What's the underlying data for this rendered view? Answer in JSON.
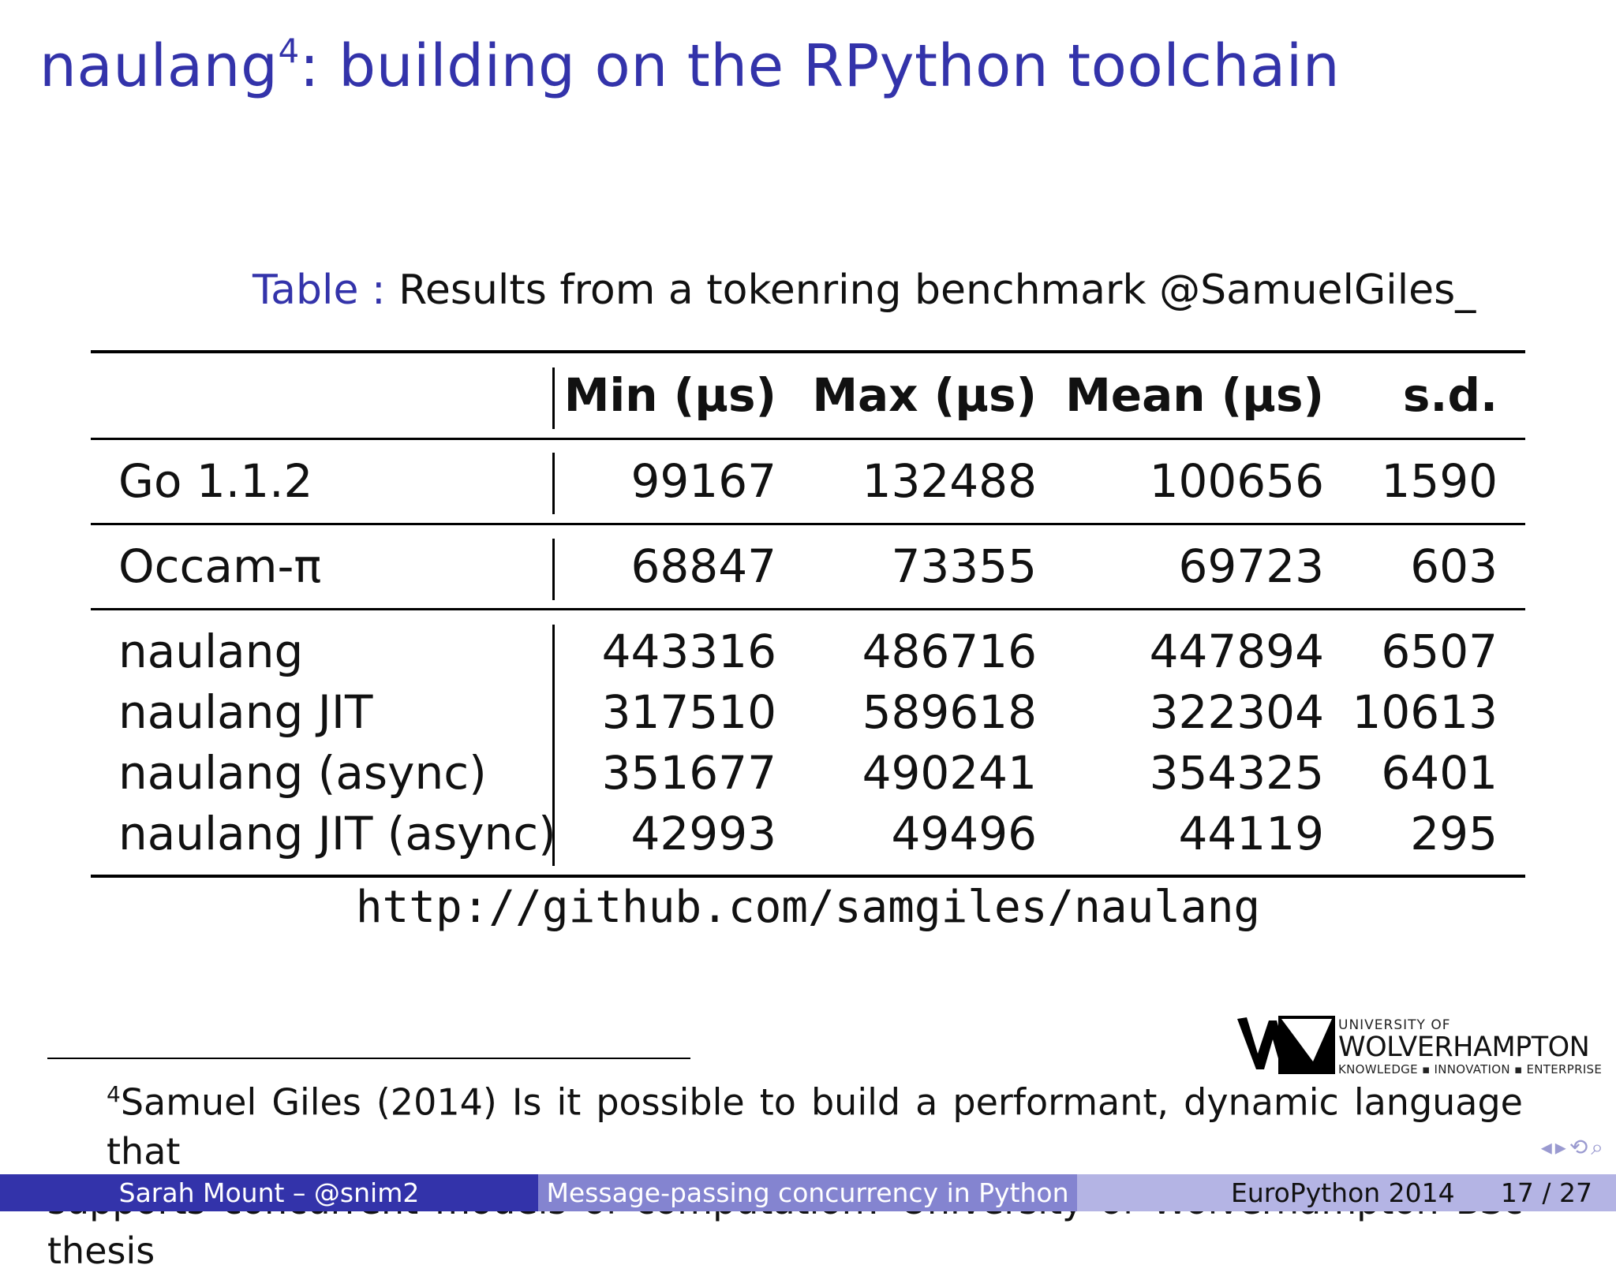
{
  "slide": {
    "title": "naulang",
    "title_sup": "4",
    "title_rest": ": building on the RPython toolchain"
  },
  "table": {
    "caption_label": "Table :",
    "caption_text": "Results from a tokenring benchmark @SamuelGiles_",
    "headers": [
      "",
      "Min (μs)",
      "Max (μs)",
      "Mean (μs)",
      "s.d."
    ],
    "rows": [
      [
        "Go 1.1.2",
        "99167",
        "132488",
        "100656",
        "1590"
      ],
      [
        "Occam-π",
        "68847",
        "73355",
        "69723",
        "603"
      ],
      [
        "naulang",
        "443316",
        "486716",
        "447894",
        "6507"
      ],
      [
        "naulang JIT",
        "317510",
        "589618",
        "322304",
        "10613"
      ],
      [
        "naulang (async)",
        "351677",
        "490241",
        "354325",
        "6401"
      ],
      [
        "naulang JIT (async)",
        "42993",
        "49496",
        "44119",
        "295"
      ]
    ]
  },
  "link": "http://github.com/samgiles/naulang",
  "logo": {
    "line1": "UNIVERSITY OF",
    "line2": "WOLVERHAMPTON",
    "line3": "KNOWLEDGE ▪ INNOVATION ▪ ENTERPRISE"
  },
  "footnote": {
    "marker": "4",
    "line1": "Samuel Giles (2014) Is it possible to build a performant, dynamic language that",
    "line2": "supports concurrent models of computation? University of Wolverhampton BSc thesis"
  },
  "footer": {
    "author": "Sarah Mount – @snim2",
    "talk": "Message-passing concurrency in Python",
    "conference": "EuroPython 2014",
    "page": "17 / 27"
  },
  "colors": {
    "accent": "#3333aa",
    "footer_mid": "#8484d0",
    "footer_right": "#b4b4e4"
  }
}
